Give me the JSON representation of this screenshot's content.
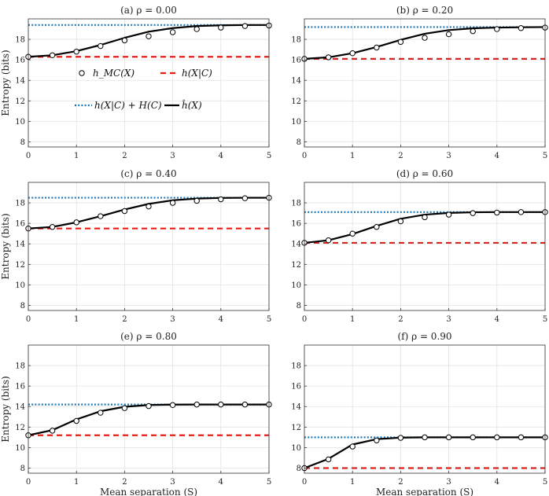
{
  "chart_data": {
    "type": "line",
    "x_label": "Mean separation (S)",
    "y_label": "Entropy (bits)",
    "xlim": [
      0,
      5
    ],
    "ylim": [
      7.5,
      20
    ],
    "x_ticks": [
      0,
      1,
      2,
      3,
      4,
      5
    ],
    "y_ticks": [
      8,
      10,
      12,
      14,
      16,
      18
    ],
    "grid": true,
    "legend": {
      "placement": "inside panel (a)",
      "entries": [
        {
          "label": "h_MC(X)",
          "style": "markers",
          "color": "#000000"
        },
        {
          "label": "h(X|C)",
          "style": "dashed",
          "color": "#e0201b"
        },
        {
          "label": "h(X|C) + H(C)",
          "style": "dotted",
          "color": "#1f77b4"
        },
        {
          "label": "ĥ(X)",
          "style": "solid",
          "color": "#000000"
        }
      ]
    },
    "panels": [
      {
        "title": "(a) ρ = 0.00",
        "h_cond": 16.3,
        "h_upper": 19.4,
        "x": [
          0,
          0.5,
          1,
          1.5,
          2,
          2.5,
          3,
          3.5,
          4,
          4.5,
          5
        ],
        "mc": [
          16.3,
          16.45,
          16.8,
          17.35,
          17.9,
          18.3,
          18.7,
          19.0,
          19.15,
          19.3,
          19.35
        ],
        "curve": [
          16.3,
          16.45,
          16.85,
          17.45,
          18.15,
          18.75,
          19.1,
          19.3,
          19.37,
          19.4,
          19.4
        ]
      },
      {
        "title": "(b) ρ = 0.20",
        "h_cond": 16.1,
        "h_upper": 19.2,
        "x": [
          0,
          0.5,
          1,
          1.5,
          2,
          2.5,
          3,
          3.5,
          4,
          4.5,
          5
        ],
        "mc": [
          16.1,
          16.25,
          16.65,
          17.2,
          17.75,
          18.15,
          18.5,
          18.8,
          19.0,
          19.1,
          19.15
        ],
        "curve": [
          16.1,
          16.25,
          16.65,
          17.25,
          17.95,
          18.55,
          18.9,
          19.08,
          19.15,
          19.18,
          19.2
        ]
      },
      {
        "title": "(c) ρ = 0.40",
        "h_cond": 15.5,
        "h_upper": 18.5,
        "x": [
          0,
          0.5,
          1,
          1.5,
          2,
          2.5,
          3,
          3.5,
          4,
          4.5,
          5
        ],
        "mc": [
          15.5,
          15.65,
          16.1,
          16.7,
          17.2,
          17.65,
          18.0,
          18.2,
          18.35,
          18.45,
          18.5
        ],
        "curve": [
          15.5,
          15.65,
          16.1,
          16.7,
          17.35,
          17.9,
          18.25,
          18.42,
          18.48,
          18.5,
          18.5
        ]
      },
      {
        "title": "(d) ρ = 0.60",
        "h_cond": 14.1,
        "h_upper": 17.1,
        "x": [
          0,
          0.5,
          1,
          1.5,
          2,
          2.5,
          3,
          3.5,
          4,
          4.5,
          5
        ],
        "mc": [
          14.1,
          14.35,
          15.0,
          15.65,
          16.2,
          16.6,
          16.85,
          17.0,
          17.05,
          17.1,
          17.1
        ],
        "curve": [
          14.1,
          14.35,
          14.95,
          15.75,
          16.45,
          16.85,
          17.02,
          17.08,
          17.1,
          17.1,
          17.1
        ]
      },
      {
        "title": "(e) ρ = 0.80",
        "h_cond": 11.2,
        "h_upper": 14.2,
        "x": [
          0,
          0.5,
          1,
          1.5,
          2,
          2.5,
          3,
          3.5,
          4,
          4.5,
          5
        ],
        "mc": [
          11.2,
          11.65,
          12.6,
          13.4,
          13.85,
          14.05,
          14.15,
          14.2,
          14.2,
          14.2,
          14.2
        ],
        "curve": [
          11.2,
          11.7,
          12.75,
          13.55,
          13.98,
          14.15,
          14.19,
          14.2,
          14.2,
          14.2,
          14.2
        ]
      },
      {
        "title": "(f) ρ = 0.90",
        "h_cond": 8.0,
        "h_upper": 11.0,
        "x": [
          0,
          0.5,
          1,
          1.5,
          2,
          2.5,
          3,
          3.5,
          4,
          4.5,
          5
        ],
        "mc": [
          8.0,
          8.85,
          10.1,
          10.7,
          10.95,
          11.0,
          11.0,
          11.0,
          11.0,
          11.0,
          11.0
        ],
        "curve": [
          8.0,
          8.9,
          10.3,
          10.82,
          10.97,
          11.0,
          11.0,
          11.0,
          11.0,
          11.0,
          11.0
        ]
      }
    ]
  }
}
